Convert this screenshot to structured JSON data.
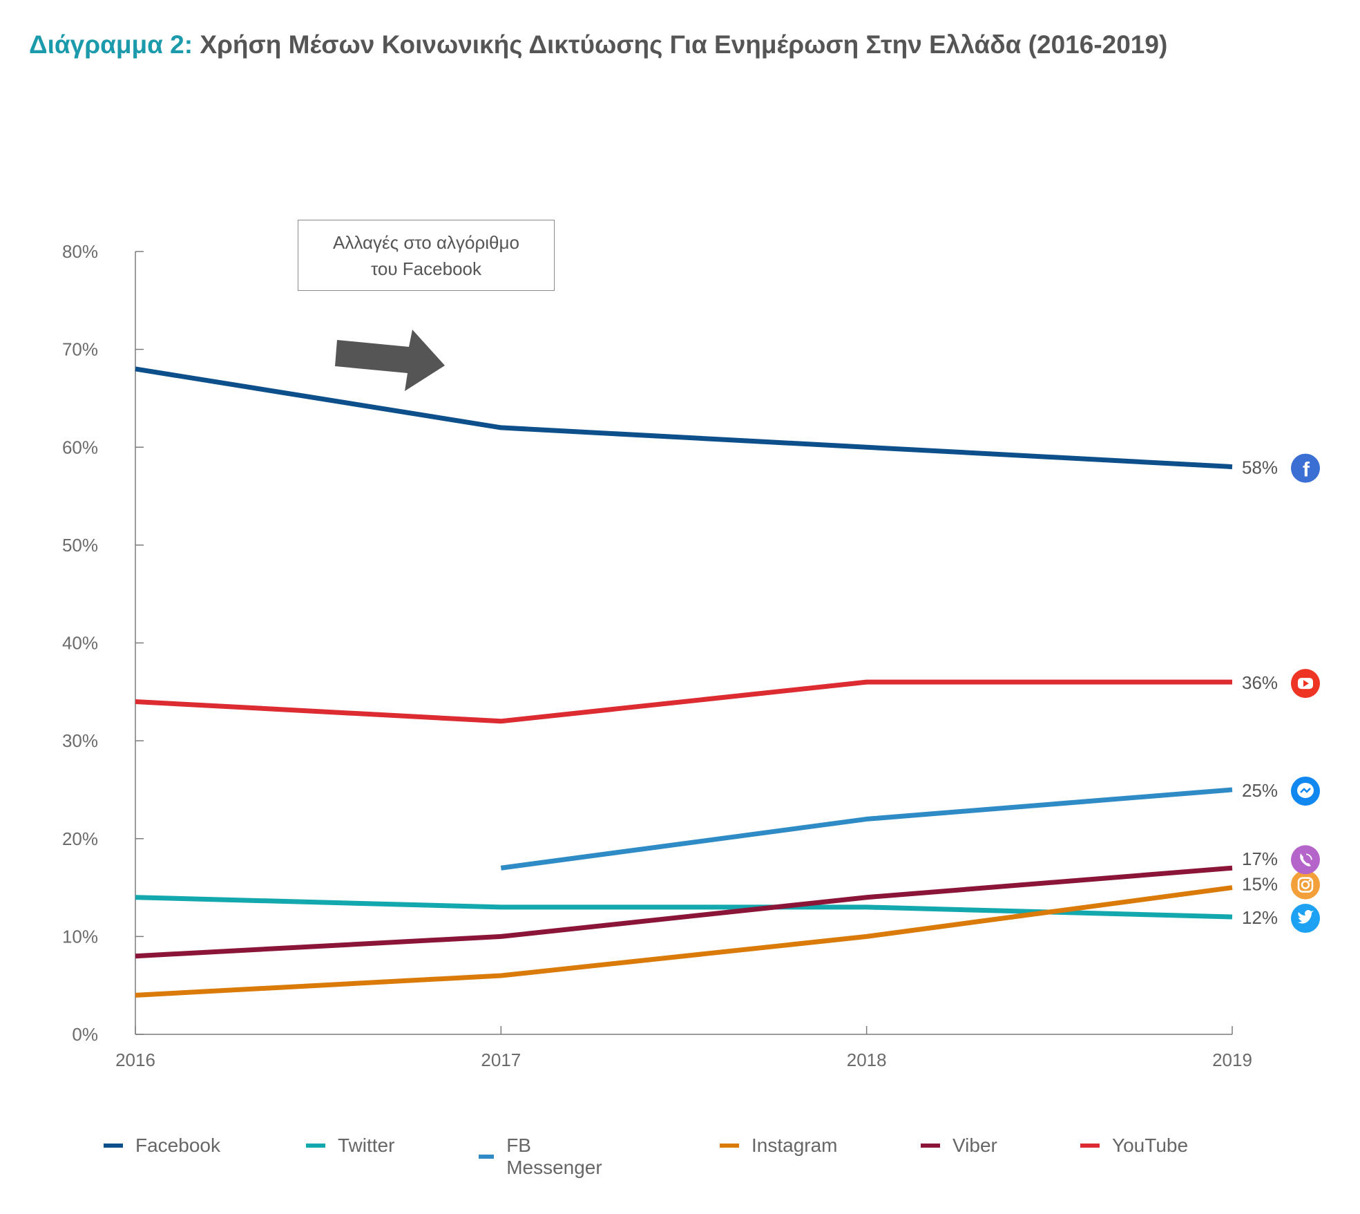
{
  "title": {
    "prefix": "Διάγραμμα 2:",
    "text": "Χρήση Μέσων Κοινωνικής Δικτύωσης Για Ενημέρωση Στην Ελλάδα (2016-2019)"
  },
  "annotation": {
    "line1": "Αλλαγές στο αλγόριθμο",
    "line2": "του Facebook"
  },
  "colors": {
    "title_accent": "#1a9aab",
    "arrow": "#555555",
    "axis": "#7a7a7a"
  },
  "chart_data": {
    "type": "line",
    "x": [
      "2016",
      "2017",
      "2018",
      "2019"
    ],
    "ylim": [
      0,
      80
    ],
    "yticks": [
      "0%",
      "10%",
      "20%",
      "30%",
      "40%",
      "50%",
      "60%",
      "70%",
      "80%"
    ],
    "grid": false,
    "legend_position": "bottom",
    "series": [
      {
        "name": "Facebook",
        "values": [
          68,
          62,
          60,
          58
        ],
        "color": "#0d4f8b",
        "end_label": "58%",
        "icon": "facebook-icon",
        "icon_color": "#3b6fd4"
      },
      {
        "name": "Twitter",
        "values": [
          14,
          13,
          13,
          12
        ],
        "color": "#13a8ae",
        "end_label": "12%",
        "icon": "twitter-icon",
        "icon_color": "#1da1f2"
      },
      {
        "name": "FB Messenger",
        "values": [
          null,
          17,
          22,
          25
        ],
        "color": "#2f8bc6",
        "end_label": "25%",
        "icon": "messenger-icon",
        "icon_color": "#1188f0"
      },
      {
        "name": "Instagram",
        "values": [
          4,
          6,
          10,
          15
        ],
        "color": "#d97a09",
        "end_label": "15%",
        "icon": "instagram-icon",
        "icon_color": "#f3a03a"
      },
      {
        "name": "Viber",
        "values": [
          8,
          10,
          14,
          17
        ],
        "color": "#8a1538",
        "end_label": "17%",
        "icon": "viber-icon",
        "icon_color": "#b565c9"
      },
      {
        "name": "YouTube",
        "values": [
          34,
          32,
          36,
          36
        ],
        "color": "#dc2b31",
        "end_label": "36%",
        "icon": "youtube-icon",
        "icon_color": "#ee3524"
      }
    ]
  }
}
